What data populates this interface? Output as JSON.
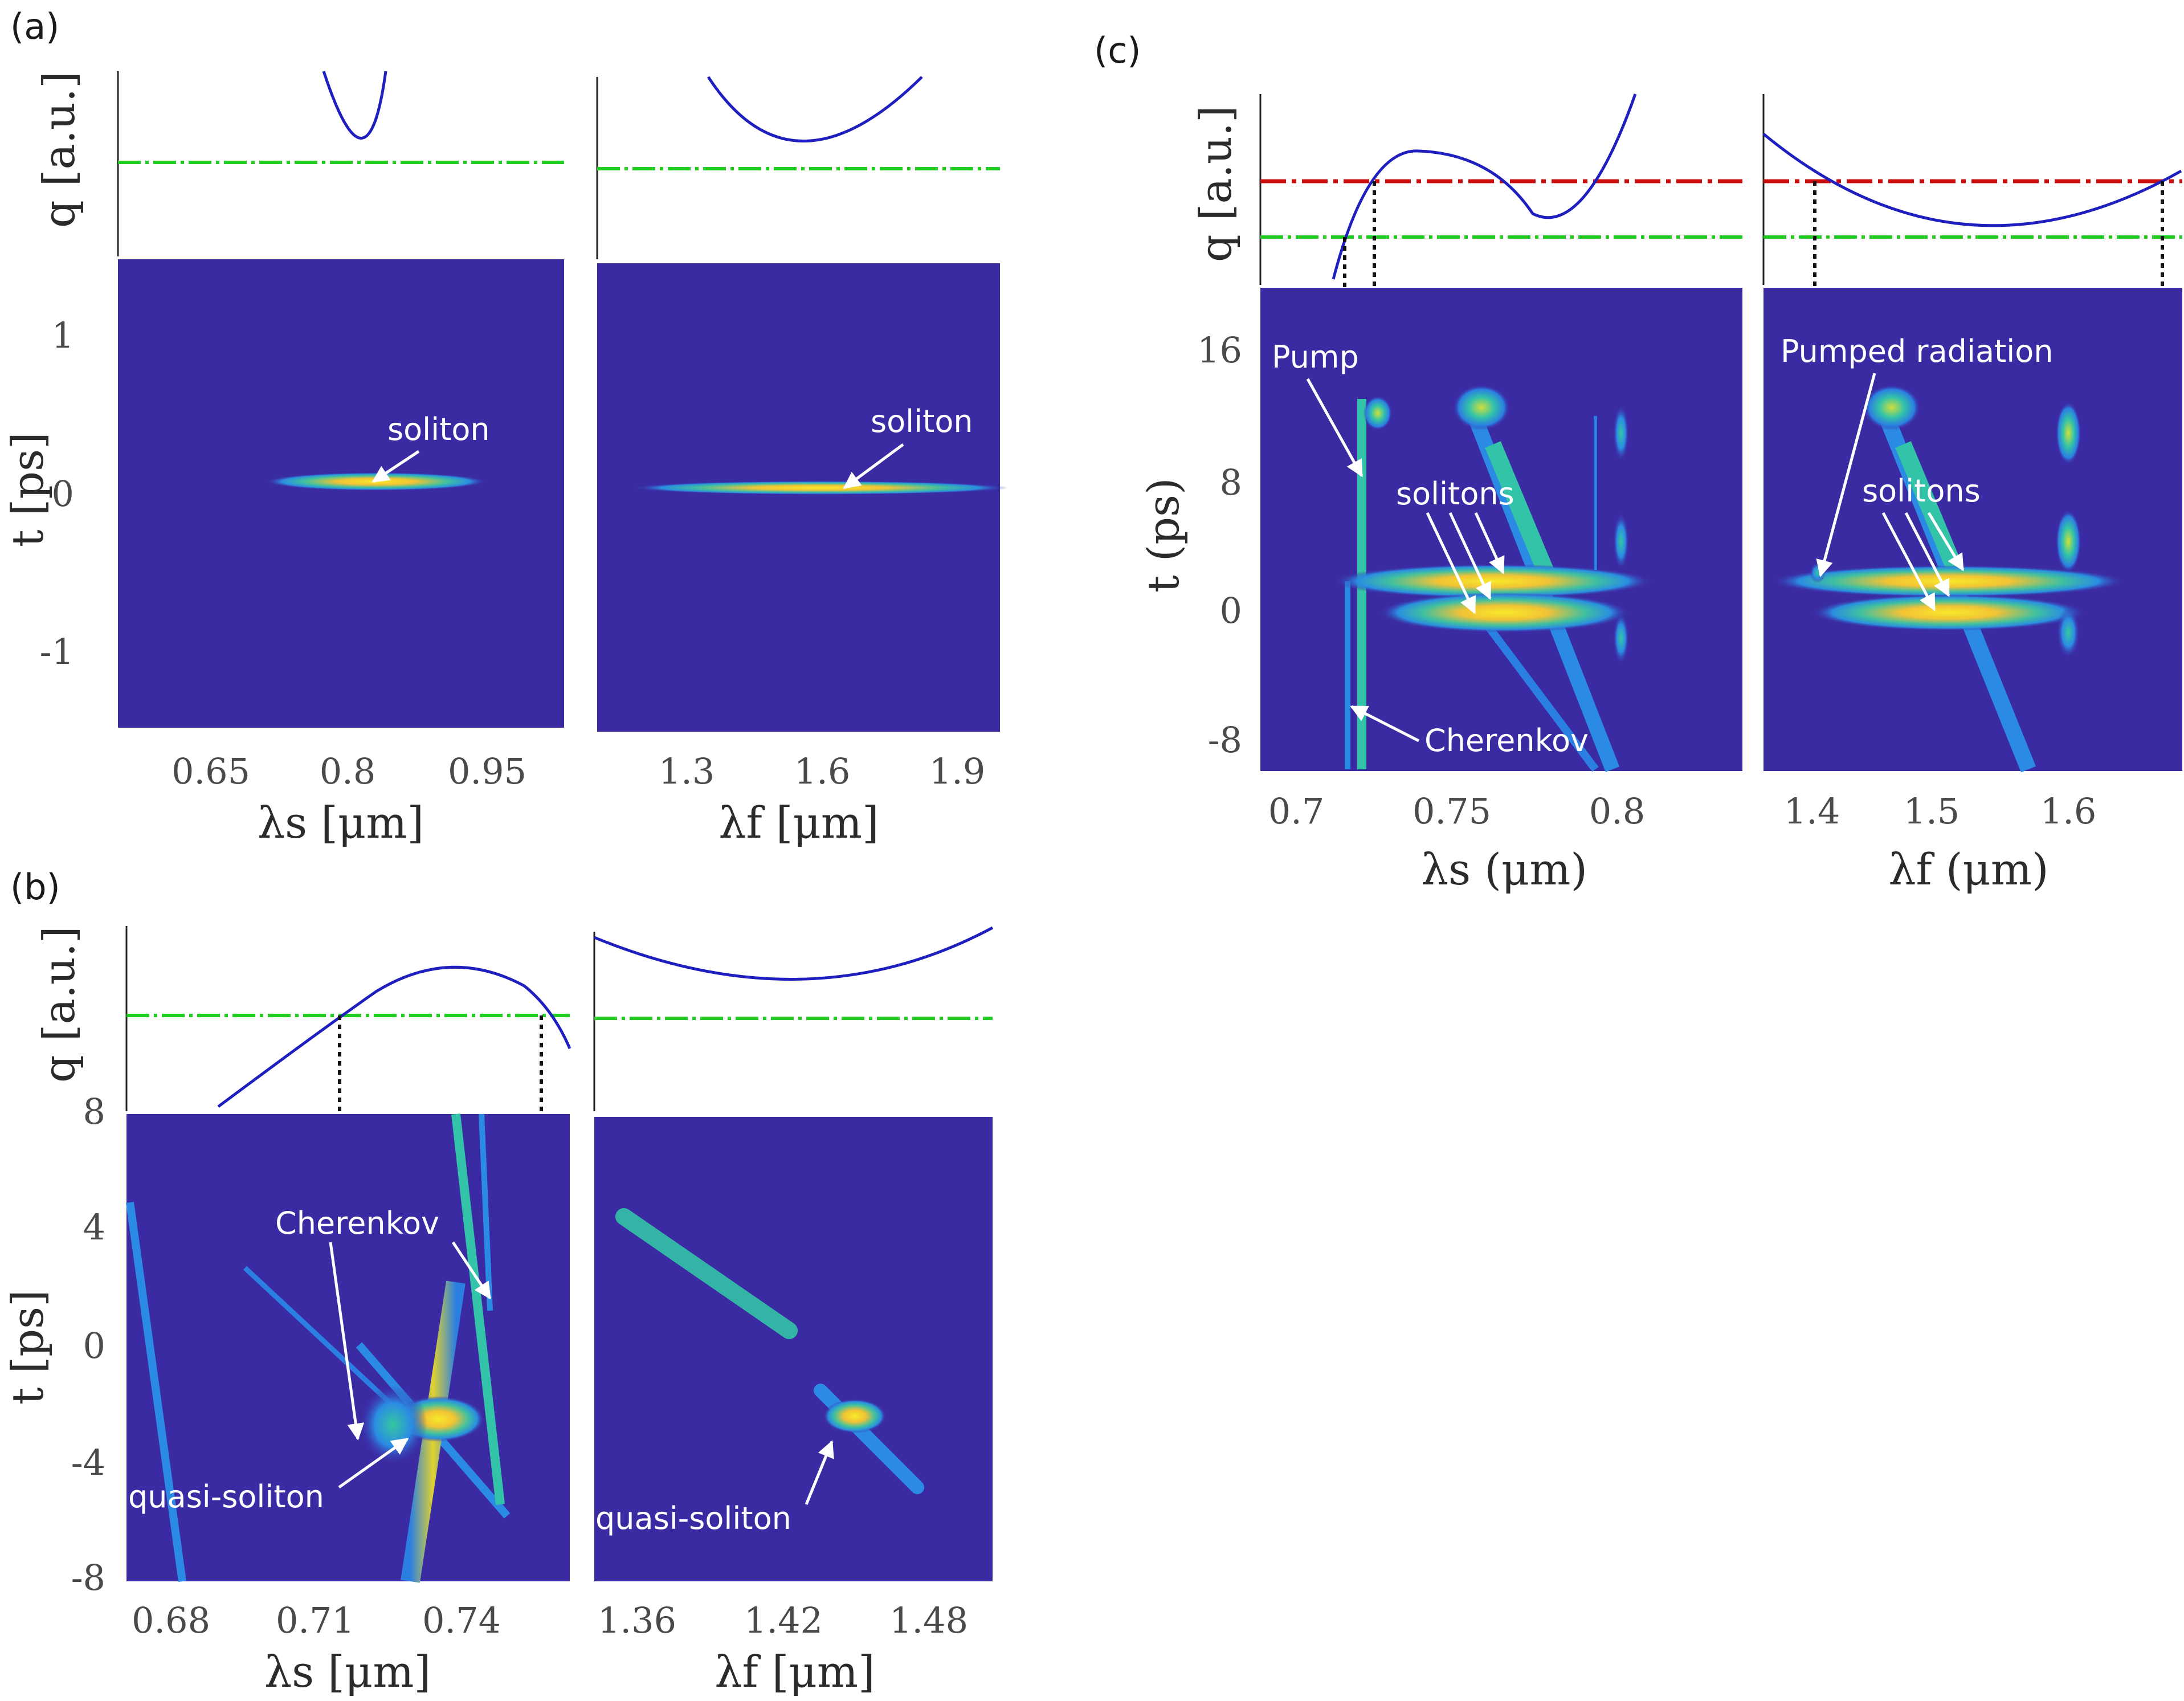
{
  "panels": {
    "a": {
      "tag": "(a)",
      "q_label": "q [a.u.]",
      "t_label": "t [ps]",
      "left": {
        "xlabel": "λs [μm]",
        "xticks": [
          "0.65",
          "0.8",
          "0.95"
        ],
        "yticks": [
          "1",
          "0",
          "-1"
        ],
        "annotations": [
          "soliton"
        ]
      },
      "right": {
        "xlabel": "λf [μm]",
        "xticks": [
          "1.3",
          "1.6",
          "1.9"
        ],
        "annotations": [
          "soliton"
        ]
      }
    },
    "b": {
      "tag": "(b)",
      "q_label": "q [a.u.]",
      "t_label": "t [ps]",
      "left": {
        "xlabel": "λs [μm]",
        "xticks": [
          "0.68",
          "0.71",
          "0.74"
        ],
        "yticks": [
          "8",
          "4",
          "0",
          "-4",
          "-8"
        ],
        "annotations": [
          "Cherenkov",
          "quasi-soliton"
        ]
      },
      "right": {
        "xlabel": "λf [μm]",
        "xticks": [
          "1.36",
          "1.42",
          "1.48"
        ],
        "annotations": [
          "quasi-soliton"
        ]
      }
    },
    "c": {
      "tag": "(c)",
      "q_label": "q [a.u.]",
      "t_label": "t (ps)",
      "left": {
        "xlabel": "λs (μm)",
        "xticks": [
          "0.7",
          "0.75",
          "0.8"
        ],
        "yticks": [
          "16",
          "8",
          "0",
          "-8"
        ],
        "annotations": [
          "Pump",
          "solitons",
          "Cherenkov"
        ]
      },
      "right": {
        "xlabel": "λf (μm)",
        "xticks": [
          "1.4",
          "1.5",
          "1.6"
        ],
        "annotations": [
          "Pumped radiation",
          "solitons"
        ]
      }
    }
  },
  "colors": {
    "background": "#3b2ba3",
    "curve": "#1f1fbf",
    "green_line": "#22cc22",
    "red_line": "#cc1111",
    "annotation": "#ffffff"
  }
}
